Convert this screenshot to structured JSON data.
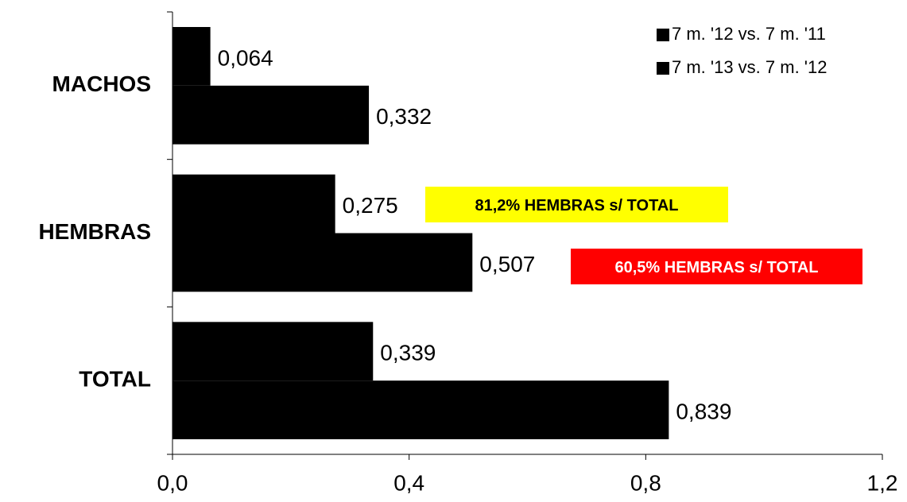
{
  "chart_data": {
    "type": "bar",
    "orientation": "horizontal",
    "categories": [
      "MACHOS",
      "HEMBRAS",
      "TOTAL"
    ],
    "series": [
      {
        "name": "7 m. '12 vs. 7 m. '11",
        "color": "#000000",
        "values": [
          0.064,
          0.275,
          0.339
        ],
        "value_labels": [
          "0,064",
          "0,275",
          "0,339"
        ]
      },
      {
        "name": "7 m. '13 vs. 7 m. '12",
        "color": "#000000",
        "values": [
          0.332,
          0.507,
          0.839
        ],
        "value_labels": [
          "0,332",
          "0,507",
          "0,839"
        ]
      }
    ],
    "xlim": [
      0,
      1.2
    ],
    "xticks": [
      {
        "value": 0,
        "label": "0,0"
      },
      {
        "value": 0.4,
        "label": "0,4"
      },
      {
        "value": 0.8,
        "label": "0,8"
      },
      {
        "value": 1.2,
        "label": "1,2"
      }
    ],
    "legend": "top-right",
    "annotations": [
      {
        "text": "81,2% HEMBRAS s/ TOTAL",
        "color": "#ffff00",
        "text_color": "#000000"
      },
      {
        "text": "60,5% HEMBRAS s/ TOTAL",
        "color": "#ff0000",
        "text_color": "#ffffff"
      }
    ]
  }
}
